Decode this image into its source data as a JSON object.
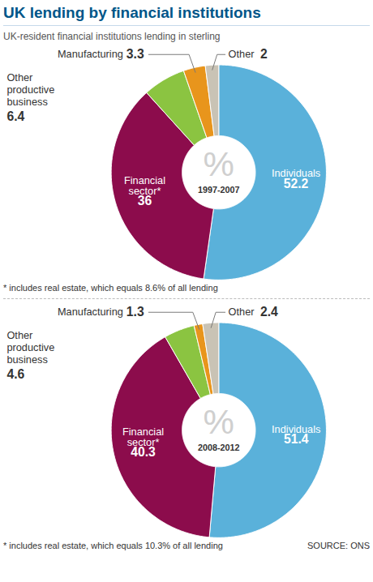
{
  "title": "UK lending by financial institutions",
  "subtitle": "UK-resident financial institutions lending in sterling",
  "source": "SOURCE: ONS",
  "chart_data": [
    {
      "type": "pie",
      "center_text": [
        "%",
        "1997-2007"
      ],
      "categories": [
        "Individuals",
        "Financial sector*",
        "Other productive business",
        "Manufacturing",
        "Other"
      ],
      "values": [
        52.2,
        36,
        6.4,
        3.3,
        2
      ],
      "colors": [
        "#5ab1da",
        "#8c0c4c",
        "#8bc441",
        "#e8951c",
        "#c9c3b5"
      ],
      "data_labels": true,
      "footnote": "* includes real estate, which equals 8.6% of all lending"
    },
    {
      "type": "pie",
      "center_text": [
        "%",
        "2008-2012"
      ],
      "categories": [
        "Individuals",
        "Financial sector*",
        "Other productive business",
        "Manufacturing",
        "Other"
      ],
      "values": [
        51.4,
        40.3,
        4.6,
        1.3,
        2.4
      ],
      "colors": [
        "#5ab1da",
        "#8c0c4c",
        "#8bc441",
        "#e8951c",
        "#c9c3b5"
      ],
      "data_labels": true,
      "footnote": "* includes real estate, which equals 10.3% of all lending"
    }
  ]
}
